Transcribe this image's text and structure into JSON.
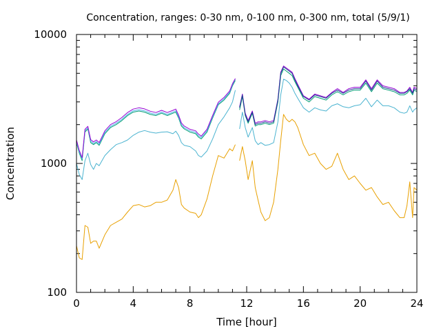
{
  "chart_data": {
    "type": "line",
    "title": "Concentration, ranges: 0-30 nm, 0-100 nm, 0-300 nm, total (5/9/1)",
    "xlabel": "Time [hour]",
    "ylabel": "Concentration",
    "xlim": [
      0,
      24
    ],
    "ylim": [
      100,
      10000
    ],
    "yscale": "log",
    "grid": false,
    "legend": "none",
    "x_ticks": [
      0,
      4,
      8,
      12,
      16,
      20,
      24
    ],
    "y_ticks": [
      100,
      1000,
      10000
    ],
    "y_tick_labels": [
      "100",
      "1000",
      "10000"
    ],
    "series": [
      {
        "color": "#e8a000",
        "x": [
          0,
          0.2,
          0.4,
          0.6,
          0.8,
          1.0,
          1.2,
          1.4,
          1.6,
          2.0,
          2.4,
          2.8,
          3.2,
          3.6,
          4.0,
          4.4,
          4.8,
          5.2,
          5.6,
          6.0,
          6.4,
          6.8,
          7.0,
          7.2,
          7.4,
          7.6,
          8.0,
          8.4,
          8.6,
          8.8,
          9.2,
          9.6,
          10.0,
          10.4,
          10.8,
          11.0,
          11.2
        ],
        "values": [
          230,
          185,
          180,
          330,
          320,
          240,
          250,
          250,
          220,
          280,
          330,
          350,
          370,
          420,
          470,
          480,
          460,
          470,
          500,
          500,
          520,
          620,
          750,
          650,
          480,
          450,
          420,
          410,
          380,
          400,
          530,
          800,
          1150,
          1100,
          1300,
          1250,
          1400
        ]
      },
      {
        "color": "#e8a000",
        "x": [
          11.5,
          11.7,
          11.9,
          12.1,
          12.4,
          12.6,
          12.8,
          13.0,
          13.3,
          13.6,
          13.9,
          14.2,
          14.4,
          14.6,
          14.8,
          15.0,
          15.2,
          15.4,
          15.6,
          16.0,
          16.4,
          16.8,
          17.2,
          17.6,
          18.0,
          18.4,
          18.8,
          19.2,
          19.6,
          20.0,
          20.4,
          20.8,
          21.2,
          21.6,
          22.0,
          22.4,
          22.8,
          23.1,
          23.3,
          23.5,
          23.7,
          23.8,
          24.0
        ],
        "values": [
          1050,
          1350,
          1050,
          750,
          1050,
          650,
          520,
          420,
          360,
          380,
          500,
          900,
          1500,
          2400,
          2200,
          2100,
          2200,
          2100,
          1900,
          1400,
          1150,
          1200,
          1000,
          900,
          950,
          1200,
          900,
          750,
          800,
          700,
          620,
          650,
          550,
          480,
          500,
          430,
          380,
          380,
          470,
          720,
          380,
          650,
          620
        ]
      },
      {
        "color": "#4ab3d0",
        "x": [
          0,
          0.2,
          0.4,
          0.6,
          0.8,
          1.0,
          1.2,
          1.4,
          1.6,
          2.0,
          2.4,
          2.8,
          3.2,
          3.6,
          4.0,
          4.4,
          4.8,
          5.2,
          5.6,
          6.0,
          6.4,
          6.8,
          7.0,
          7.2,
          7.4,
          7.6,
          8.0,
          8.4,
          8.6,
          8.8,
          9.2,
          9.6,
          10.0,
          10.4,
          10.8,
          11.0,
          11.2
        ],
        "values": [
          1000,
          820,
          750,
          1050,
          1200,
          980,
          900,
          1000,
          960,
          1150,
          1280,
          1400,
          1450,
          1520,
          1650,
          1750,
          1800,
          1750,
          1720,
          1750,
          1760,
          1700,
          1780,
          1650,
          1450,
          1380,
          1350,
          1250,
          1150,
          1120,
          1250,
          1550,
          2000,
          2300,
          2700,
          3000,
          3700
        ]
      },
      {
        "color": "#4ab3d0",
        "x": [
          11.5,
          11.7,
          11.9,
          12.1,
          12.4,
          12.6,
          12.8,
          13.0,
          13.3,
          13.6,
          13.9,
          14.2,
          14.4,
          14.6,
          14.8,
          15.0,
          15.2,
          15.4,
          15.6,
          16.0,
          16.4,
          16.8,
          17.2,
          17.6,
          18.0,
          18.4,
          18.8,
          19.2,
          19.6,
          20.0,
          20.4,
          20.8,
          21.2,
          21.6,
          22.0,
          22.4,
          22.8,
          23.1,
          23.3,
          23.5,
          23.7,
          23.8,
          24.0
        ],
        "values": [
          1850,
          2500,
          1900,
          1600,
          1900,
          1500,
          1400,
          1450,
          1380,
          1400,
          1450,
          2100,
          3400,
          4500,
          4400,
          4200,
          3900,
          3500,
          3200,
          2700,
          2500,
          2700,
          2600,
          2550,
          2800,
          2900,
          2750,
          2700,
          2800,
          2850,
          3200,
          2750,
          3100,
          2800,
          2800,
          2700,
          2500,
          2450,
          2500,
          2800,
          2500,
          2600,
          2700
        ]
      },
      {
        "color": "#009e73",
        "x": [
          0,
          0.2,
          0.4,
          0.6,
          0.8,
          1.0,
          1.2,
          1.4,
          1.6,
          2.0,
          2.4,
          2.8,
          3.2,
          3.6,
          4.0,
          4.4,
          4.8,
          5.2,
          5.6,
          6.0,
          6.4,
          6.8,
          7.0,
          7.2,
          7.4,
          7.6,
          8.0,
          8.4,
          8.6,
          8.8,
          9.2,
          9.6,
          10.0,
          10.4,
          10.8,
          11.0,
          11.2
        ],
        "values": [
          1450,
          1200,
          1050,
          1750,
          1850,
          1450,
          1400,
          1450,
          1380,
          1700,
          1900,
          2000,
          2150,
          2350,
          2500,
          2550,
          2500,
          2400,
          2350,
          2450,
          2350,
          2450,
          2500,
          2250,
          1950,
          1850,
          1750,
          1700,
          1600,
          1550,
          1750,
          2250,
          2850,
          3100,
          3500,
          4000,
          4400
        ]
      },
      {
        "color": "#009e73",
        "x": [
          11.5,
          11.7,
          11.9,
          12.1,
          12.4,
          12.6,
          12.8,
          13.0,
          13.3,
          13.6,
          13.9,
          14.2,
          14.4,
          14.6,
          14.8,
          15.0,
          15.2,
          15.4,
          15.6,
          16.0,
          16.4,
          16.8,
          17.2,
          17.6,
          18.0,
          18.4,
          18.8,
          19.2,
          19.6,
          20.0,
          20.4,
          20.8,
          21.2,
          21.6,
          22.0,
          22.4,
          22.8,
          23.1,
          23.3,
          23.5,
          23.7,
          23.8,
          24.0
        ],
        "values": [
          2600,
          3300,
          2350,
          2050,
          2450,
          1950,
          2000,
          2000,
          2050,
          2000,
          2050,
          3000,
          4800,
          5400,
          5200,
          5000,
          4800,
          4300,
          3900,
          3200,
          3000,
          3300,
          3200,
          3100,
          3400,
          3600,
          3400,
          3600,
          3700,
          3700,
          4200,
          3600,
          4200,
          3800,
          3700,
          3600,
          3400,
          3400,
          3500,
          3700,
          3400,
          3700,
          3600
        ]
      },
      {
        "color": "#56b4e9",
        "x": [
          0,
          0.2,
          0.4,
          0.6,
          0.8,
          1.0,
          1.2,
          1.4,
          1.6,
          2.0,
          2.4,
          2.8,
          3.2,
          3.6,
          4.0,
          4.4,
          4.8,
          5.2,
          5.6,
          6.0,
          6.4,
          6.8,
          7.0,
          7.2,
          7.4,
          7.6,
          8.0,
          8.4,
          8.6,
          8.8,
          9.2,
          9.6,
          10.0,
          10.4,
          10.8,
          11.0,
          11.2
        ],
        "values": [
          1480,
          1230,
          1080,
          1790,
          1890,
          1490,
          1430,
          1480,
          1410,
          1740,
          1940,
          2050,
          2200,
          2400,
          2560,
          2610,
          2560,
          2460,
          2400,
          2500,
          2400,
          2500,
          2560,
          2300,
          2000,
          1890,
          1790,
          1740,
          1640,
          1590,
          1790,
          2300,
          2900,
          3170,
          3570,
          4080,
          4500
        ]
      },
      {
        "color": "#9400d3",
        "x": [
          0,
          0.2,
          0.4,
          0.6,
          0.8,
          1.0,
          1.2,
          1.4,
          1.6,
          2.0,
          2.4,
          2.8,
          3.2,
          3.6,
          4.0,
          4.4,
          4.8,
          5.2,
          5.6,
          6.0,
          6.4,
          6.8,
          7.0,
          7.2,
          7.4,
          7.6,
          8.0,
          8.4,
          8.6,
          8.8,
          9.2,
          9.6,
          10.0,
          10.4,
          10.8,
          11.0,
          11.2
        ],
        "values": [
          1520,
          1260,
          1110,
          1840,
          1940,
          1530,
          1470,
          1520,
          1450,
          1790,
          2000,
          2110,
          2270,
          2480,
          2640,
          2700,
          2650,
          2540,
          2480,
          2580,
          2480,
          2580,
          2640,
          2370,
          2060,
          1950,
          1840,
          1790,
          1690,
          1630,
          1840,
          2360,
          2980,
          3250,
          3650,
          4150,
          4560
        ]
      },
      {
        "color": "#9400d3",
        "x": [
          11.5,
          11.7,
          11.9,
          12.1,
          12.4,
          12.6,
          12.8,
          13.0,
          13.3,
          13.6,
          13.9,
          14.2,
          14.4,
          14.6,
          14.8,
          15.0,
          15.2,
          15.4,
          15.6,
          16.0,
          16.4,
          16.8,
          17.2,
          17.6,
          18.0,
          18.4,
          18.8,
          19.2,
          19.6,
          20.0,
          20.4,
          20.8,
          21.2,
          21.6,
          22.0,
          22.4,
          22.8,
          23.1,
          23.3,
          23.5,
          23.7,
          23.8,
          24.0
        ],
        "values": [
          2750,
          3450,
          2450,
          2150,
          2550,
          2050,
          2100,
          2100,
          2150,
          2100,
          2150,
          3150,
          5100,
          5700,
          5500,
          5300,
          5100,
          4550,
          4100,
          3350,
          3150,
          3450,
          3350,
          3250,
          3550,
          3800,
          3550,
          3800,
          3900,
          3900,
          4450,
          3800,
          4450,
          4000,
          3900,
          3800,
          3550,
          3550,
          3650,
          3900,
          3550,
          3900,
          3800
        ]
      },
      {
        "color": "#1f3a93",
        "x": [
          11.5,
          11.7,
          11.9,
          12.1,
          12.4,
          12.6,
          12.8,
          13.0,
          13.3,
          13.6,
          13.9,
          14.2,
          14.4,
          14.6,
          14.8,
          15.0,
          15.2,
          15.4,
          15.6,
          16.0,
          16.4,
          16.8,
          17.2,
          17.6,
          18.0,
          18.4,
          18.8,
          19.2,
          19.6,
          20.0,
          20.4,
          20.8,
          21.2,
          21.6,
          22.0,
          22.4,
          22.8,
          23.1,
          23.3,
          23.5,
          23.7,
          23.8,
          24.0
        ],
        "values": [
          2700,
          3400,
          2400,
          2100,
          2500,
          2000,
          2050,
          2050,
          2100,
          2050,
          2100,
          3100,
          5000,
          5600,
          5400,
          5200,
          5000,
          4450,
          4000,
          3300,
          3100,
          3400,
          3300,
          3200,
          3500,
          3700,
          3500,
          3700,
          3800,
          3800,
          4350,
          3700,
          4350,
          3900,
          3800,
          3700,
          3500,
          3500,
          3600,
          3800,
          3500,
          3800,
          3700
        ]
      }
    ]
  }
}
